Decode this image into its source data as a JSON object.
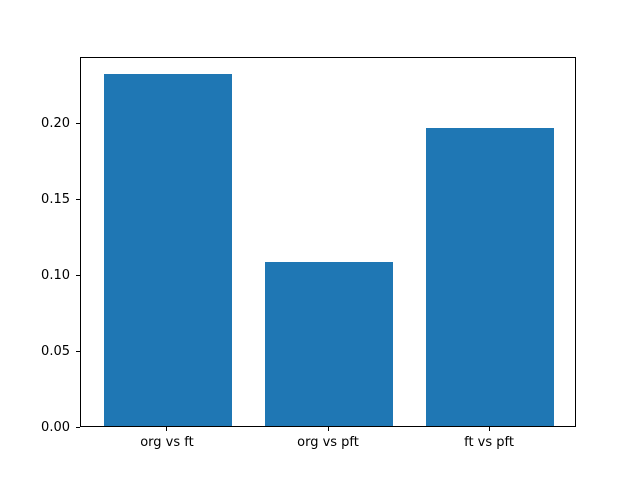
{
  "chart_data": {
    "type": "bar",
    "categories": [
      "org vs ft",
      "org vs pft",
      "ft vs pft"
    ],
    "values": [
      0.232,
      0.108,
      0.196
    ],
    "title": "",
    "xlabel": "",
    "ylabel": "",
    "ylim": [
      0,
      0.2436
    ],
    "yticks": [
      0.0,
      0.05,
      0.1,
      0.15,
      0.2
    ],
    "ytick_labels": [
      "0.00",
      "0.05",
      "0.10",
      "0.15",
      "0.20"
    ],
    "grid": false,
    "legend": "none",
    "bar_color": "#1f77b4",
    "bar_width_fraction": 0.8,
    "axis_color": "#000000",
    "background_color": "#ffffff"
  }
}
